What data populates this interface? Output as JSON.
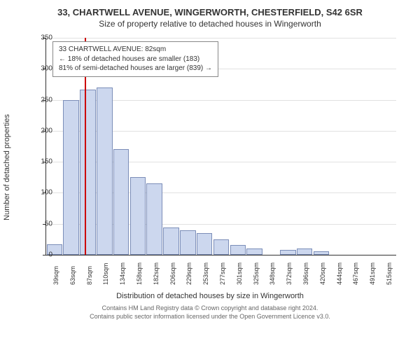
{
  "header": {
    "address": "33, CHARTWELL AVENUE, WINGERWORTH, CHESTERFIELD, S42 6SR",
    "subtitle": "Size of property relative to detached houses in Wingerworth"
  },
  "chart": {
    "type": "bar",
    "ylabel": "Number of detached properties",
    "xlabel": "Distribution of detached houses by size in Wingerworth",
    "ylim": [
      0,
      350
    ],
    "ytick_step": 50,
    "yticks": [
      0,
      50,
      100,
      150,
      200,
      250,
      300,
      350
    ],
    "categories": [
      "39sqm",
      "63sqm",
      "87sqm",
      "110sqm",
      "134sqm",
      "158sqm",
      "182sqm",
      "206sqm",
      "229sqm",
      "253sqm",
      "277sqm",
      "301sqm",
      "325sqm",
      "348sqm",
      "372sqm",
      "396sqm",
      "420sqm",
      "444sqm",
      "467sqm",
      "491sqm",
      "515sqm"
    ],
    "values": [
      17,
      250,
      267,
      270,
      170,
      125,
      115,
      44,
      40,
      35,
      25,
      16,
      10,
      0,
      8,
      10,
      6,
      0,
      0,
      0,
      0
    ],
    "bar_fill": "#ccd7ee",
    "bar_stroke": "#7b8db8",
    "bar_width": 0.95,
    "reference_line": {
      "x_value": 82,
      "color": "#cc0000",
      "width": 2
    },
    "info_box": {
      "line1": "33 CHARTWELL AVENUE: 82sqm",
      "line2": "← 18% of detached houses are smaller (183)",
      "line3": "81% of semi-detached houses are larger (839) →"
    },
    "background_color": "#ffffff",
    "grid_color": "#333333",
    "grid_opacity": 0.15,
    "label_fontsize": 11,
    "tick_fontsize": 10
  },
  "footer": {
    "line1": "Contains HM Land Registry data © Crown copyright and database right 2024.",
    "line2": "Contains public sector information licensed under the Open Government Licence v3.0."
  }
}
